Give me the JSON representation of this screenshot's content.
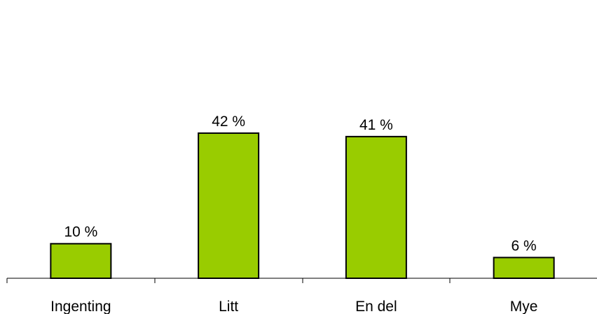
{
  "chart_data": {
    "type": "bar",
    "categories": [
      "Ingenting",
      "Litt",
      "En del",
      "Mye"
    ],
    "values": [
      10,
      42,
      41,
      6
    ],
    "value_labels": [
      "10 %",
      "42 %",
      "41 %",
      "6 %"
    ],
    "ylim": [
      0,
      100
    ],
    "grid": false,
    "legend": "none",
    "colors": {
      "bar": "#99CC00",
      "bar_border": "#000000",
      "axis": "#000000"
    }
  }
}
